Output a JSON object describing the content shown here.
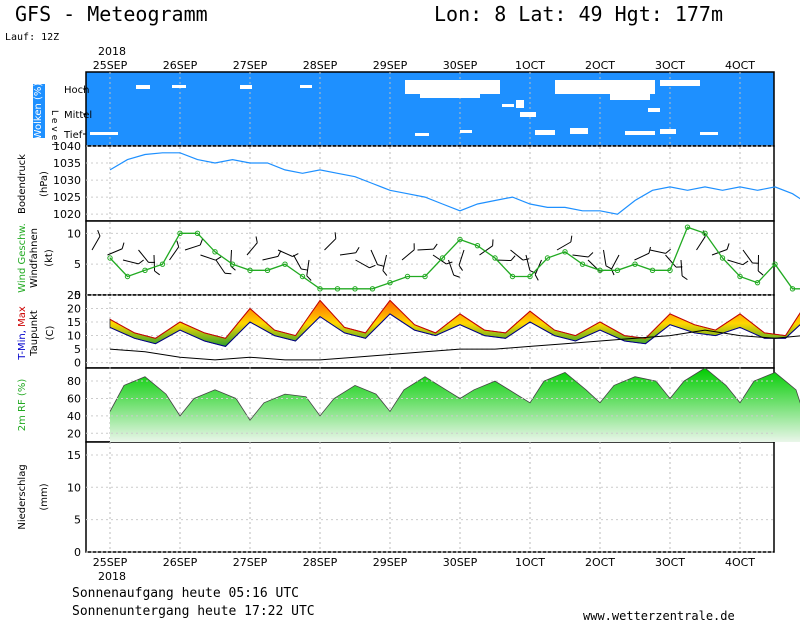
{
  "header": {
    "title": "GFS - Meteogramm",
    "coords": "Lon: 8 Lat: 49 Hgt: 177m",
    "run": "Lauf: 12Z"
  },
  "footer": {
    "sunrise": "Sonnenaufgang heute 05:16 UTC",
    "sunset": "Sonnenuntergang heute 17:22 UTC",
    "site": "www.wetterzentrale.de"
  },
  "colors": {
    "cloud_bg": "#1e90ff",
    "pressure_line": "#1e90ff",
    "wind_line": "#22aa22",
    "temp_fill_low": "#2ca02c",
    "temp_fill_mid": "#ffd700",
    "temp_fill_high": "#ff6600",
    "rh_fill": "#66cc66"
  },
  "chart_data": [
    {
      "type": "area",
      "panel": "Wolken (%)",
      "title": "Wolken (%)",
      "level_label": "Level",
      "levels": [
        "Hoch",
        "Mittel",
        "Tief"
      ],
      "year_label_top": "2018",
      "year_label_bottom": "2018",
      "date_labels": [
        "25SEP",
        "26SEP",
        "27SEP",
        "28SEP",
        "29SEP",
        "30SEP",
        "1OCT",
        "2OCT",
        "3OCT",
        "4OCT"
      ],
      "note": "mostly overcast (blue) with brief clear gaps"
    },
    {
      "type": "line",
      "title": "Bodendruck",
      "ylabel": "(hPa)",
      "ylim": [
        1018,
        1040
      ],
      "yticks": [
        1020,
        1025,
        1030,
        1035,
        1040
      ],
      "x": [
        0,
        0.25,
        0.5,
        0.75,
        1,
        1.25,
        1.5,
        1.75,
        2,
        2.25,
        2.5,
        2.75,
        3,
        3.25,
        3.5,
        3.75,
        4,
        4.25,
        4.5,
        4.75,
        5,
        5.25,
        5.5,
        5.75,
        6,
        6.25,
        6.5,
        6.75,
        7,
        7.25,
        7.5,
        7.75,
        8,
        8.25,
        8.5,
        8.75,
        9,
        9.25,
        9.5,
        9.75,
        9.9
      ],
      "values": [
        1033,
        1036,
        1037.5,
        1038,
        1038,
        1036,
        1035,
        1036,
        1035,
        1035,
        1033,
        1032,
        1033,
        1032,
        1031,
        1029,
        1027,
        1026,
        1025,
        1023,
        1021,
        1023,
        1024,
        1025,
        1023,
        1022,
        1022,
        1021,
        1021,
        1020,
        1024,
        1027,
        1028,
        1027,
        1028,
        1027,
        1028,
        1027,
        1028,
        1026,
        1024
      ]
    },
    {
      "type": "line",
      "title": "Wind Geschw.",
      "subtitle": "Windfahnen",
      "ylabel": "(kt)",
      "ylim": [
        0,
        12
      ],
      "yticks": [
        0,
        5,
        10
      ],
      "x": [
        0,
        0.25,
        0.5,
        0.75,
        1,
        1.25,
        1.5,
        1.75,
        2,
        2.25,
        2.5,
        2.75,
        3,
        3.25,
        3.5,
        3.75,
        4,
        4.25,
        4.5,
        4.75,
        5,
        5.25,
        5.5,
        5.75,
        6,
        6.25,
        6.5,
        6.75,
        7,
        7.25,
        7.5,
        7.75,
        8,
        8.25,
        8.5,
        8.75,
        9,
        9.25,
        9.5,
        9.75,
        9.9
      ],
      "values": [
        6,
        3,
        4,
        5,
        10,
        10,
        7,
        5,
        4,
        4,
        5,
        3,
        1,
        1,
        1,
        1,
        2,
        3,
        3,
        6,
        9,
        8,
        6,
        3,
        3,
        6,
        7,
        5,
        4,
        4,
        5,
        4,
        4,
        11,
        10,
        6,
        3,
        2,
        5,
        1,
        1
      ]
    },
    {
      "type": "area",
      "title": "T-Min, Max",
      "subtitle": "Taupunkt",
      "ylabel": "(C)",
      "ylim": [
        -2,
        25
      ],
      "yticks": [
        0,
        5,
        10,
        15,
        20,
        25
      ],
      "series": [
        {
          "name": "T-Max",
          "x": [
            0,
            0.35,
            0.65,
            1,
            1.35,
            1.65,
            2,
            2.35,
            2.65,
            3,
            3.35,
            3.65,
            4,
            4.35,
            4.65,
            5,
            5.35,
            5.65,
            6,
            6.35,
            6.65,
            7,
            7.35,
            7.65,
            8,
            8.35,
            8.65,
            9,
            9.35,
            9.65,
            9.9
          ],
          "values": [
            16,
            11,
            9,
            15,
            11,
            9,
            20,
            12,
            10,
            23,
            13,
            11,
            23,
            14,
            11,
            18,
            12,
            11,
            19,
            12,
            10,
            15,
            10,
            9,
            18,
            14,
            12,
            18,
            11,
            10,
            20
          ]
        },
        {
          "name": "T-Min",
          "x": [
            0,
            0.35,
            0.65,
            1,
            1.35,
            1.65,
            2,
            2.35,
            2.65,
            3,
            3.35,
            3.65,
            4,
            4.35,
            4.65,
            5,
            5.35,
            5.65,
            6,
            6.35,
            6.65,
            7,
            7.35,
            7.65,
            8,
            8.35,
            8.65,
            9,
            9.35,
            9.65,
            9.9
          ],
          "values": [
            13,
            9,
            7,
            12,
            8,
            6,
            15,
            10,
            8,
            17,
            11,
            9,
            18,
            12,
            10,
            14,
            10,
            9,
            15,
            10,
            8,
            12,
            8,
            7,
            14,
            11,
            10,
            13,
            9,
            9,
            15
          ]
        },
        {
          "name": "Taupunkt",
          "x": [
            0,
            0.5,
            1,
            1.5,
            2,
            2.5,
            3,
            3.5,
            4,
            4.5,
            5,
            5.5,
            6,
            6.5,
            7,
            7.5,
            8,
            8.5,
            9,
            9.5,
            9.9
          ],
          "values": [
            5,
            4,
            2,
            1,
            2,
            1,
            1,
            2,
            3,
            4,
            5,
            5,
            6,
            7,
            8,
            9,
            10,
            12,
            10,
            9,
            10
          ]
        }
      ]
    },
    {
      "type": "area",
      "title": "2m RF (%)",
      "ylim": [
        10,
        95
      ],
      "yticks": [
        20,
        40,
        60,
        80
      ],
      "x": [
        0,
        0.2,
        0.5,
        0.8,
        1,
        1.2,
        1.5,
        1.8,
        2,
        2.2,
        2.5,
        2.8,
        3,
        3.2,
        3.5,
        3.8,
        4,
        4.2,
        4.5,
        4.8,
        5,
        5.2,
        5.5,
        5.8,
        6,
        6.2,
        6.5,
        6.8,
        7,
        7.2,
        7.5,
        7.8,
        8,
        8.2,
        8.5,
        8.8,
        9,
        9.2,
        9.5,
        9.8,
        9.9
      ],
      "values": [
        45,
        75,
        85,
        65,
        40,
        60,
        70,
        60,
        35,
        55,
        65,
        62,
        40,
        60,
        75,
        65,
        45,
        70,
        85,
        70,
        60,
        70,
        80,
        65,
        55,
        80,
        90,
        70,
        55,
        75,
        85,
        80,
        60,
        80,
        95,
        75,
        55,
        80,
        90,
        70,
        45
      ]
    },
    {
      "type": "bar",
      "title": "Niederschlag",
      "ylabel": "(mm)",
      "ylim": [
        0,
        17
      ],
      "yticks": [
        0,
        5,
        10,
        15
      ],
      "values": [],
      "note": "no precipitation"
    }
  ]
}
